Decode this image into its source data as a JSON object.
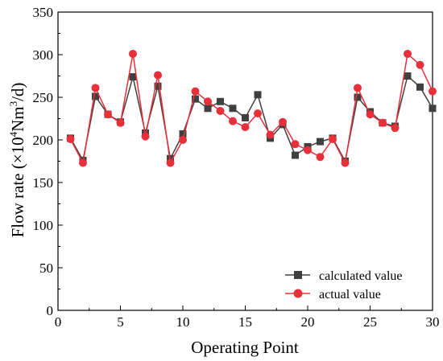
{
  "chart_data": {
    "type": "line",
    "xlabel": "Operating Point",
    "ylabel_parts": [
      "Flow rate (×10",
      "4",
      "Nm",
      "3",
      "/d)"
    ],
    "xlim": [
      0,
      30
    ],
    "ylim": [
      0,
      350
    ],
    "xticks": [
      0,
      5,
      10,
      15,
      20,
      25,
      30
    ],
    "yticks": [
      0,
      50,
      100,
      150,
      200,
      250,
      300,
      350
    ],
    "grid": false,
    "legend_position": "bottom-right",
    "x": [
      1,
      2,
      3,
      4,
      5,
      6,
      7,
      8,
      9,
      10,
      11,
      12,
      13,
      14,
      15,
      16,
      17,
      18,
      19,
      20,
      21,
      22,
      23,
      24,
      25,
      26,
      27,
      28,
      29,
      30
    ],
    "series": [
      {
        "name": "calculated value",
        "color": "#404040",
        "marker": "square",
        "values": [
          202,
          176,
          251,
          230,
          221,
          274,
          208,
          263,
          178,
          207,
          248,
          237,
          245,
          237,
          226,
          253,
          202,
          218,
          182,
          192,
          198,
          202,
          175,
          250,
          233,
          220,
          216,
          275,
          262,
          237
        ]
      },
      {
        "name": "actual value",
        "color": "#e8303a",
        "marker": "circle",
        "values": [
          201,
          173,
          261,
          230,
          220,
          301,
          204,
          276,
          173,
          200,
          257,
          245,
          234,
          222,
          215,
          231,
          206,
          221,
          195,
          188,
          180,
          201,
          173,
          261,
          230,
          220,
          214,
          301,
          288,
          257
        ]
      }
    ]
  }
}
